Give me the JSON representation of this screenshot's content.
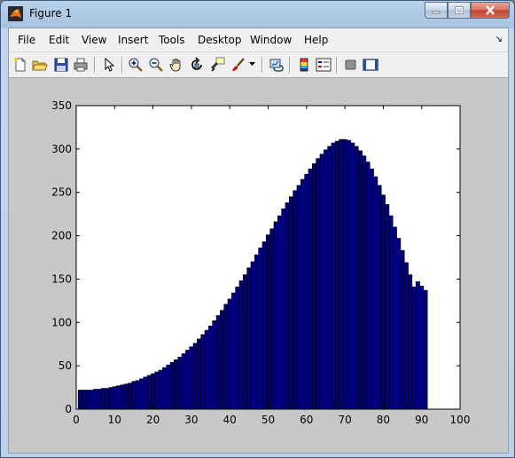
{
  "window": {
    "title": "Figure 1"
  },
  "menu": {
    "items": [
      "File",
      "Edit",
      "View",
      "Insert",
      "Tools",
      "Desktop",
      "Window",
      "Help"
    ],
    "dock_symbol": "↘"
  },
  "toolbar": {
    "buttons": [
      "new-file-icon",
      "open-folder-icon",
      "save-icon",
      "print-icon",
      "pointer-icon",
      "zoom-in-icon",
      "zoom-out-icon",
      "pan-hand-icon",
      "rotate-3d-icon",
      "data-cursor-icon",
      "brush-icon",
      "link-icon",
      "colorbar-icon",
      "legend-icon",
      "hide-plot-tools-icon",
      "show-plot-tools-icon"
    ]
  },
  "colors": {
    "bar_fill": "#00007f",
    "bar_edge": "#000000",
    "figure_bg": "#c8c8c8"
  },
  "chart_data": {
    "type": "bar",
    "xlim": [
      0,
      100
    ],
    "ylim": [
      0,
      350
    ],
    "xticks": [
      0,
      10,
      20,
      30,
      40,
      50,
      60,
      70,
      80,
      90,
      100
    ],
    "yticks": [
      0,
      50,
      100,
      150,
      200,
      250,
      300,
      350
    ],
    "x": [
      1,
      2,
      3,
      4,
      5,
      6,
      7,
      8,
      9,
      10,
      11,
      12,
      13,
      14,
      15,
      16,
      17,
      18,
      19,
      20,
      21,
      22,
      23,
      24,
      25,
      26,
      27,
      28,
      29,
      30,
      31,
      32,
      33,
      34,
      35,
      36,
      37,
      38,
      39,
      40,
      41,
      42,
      43,
      44,
      45,
      46,
      47,
      48,
      49,
      50,
      51,
      52,
      53,
      54,
      55,
      56,
      57,
      58,
      59,
      60,
      61,
      62,
      63,
      64,
      65,
      66,
      67,
      68,
      69,
      70,
      71,
      72,
      73,
      74,
      75,
      76,
      77,
      78,
      79,
      80,
      81,
      82,
      83,
      84,
      85,
      86,
      87,
      88,
      89,
      90,
      91
    ],
    "values": [
      22,
      22,
      22,
      22,
      23,
      23,
      24,
      24,
      25,
      26,
      27,
      28,
      29,
      30,
      32,
      33,
      35,
      37,
      39,
      41,
      43,
      45,
      48,
      51,
      54,
      57,
      60,
      64,
      68,
      72,
      76,
      81,
      86,
      91,
      96,
      102,
      108,
      114,
      121,
      127,
      134,
      141,
      148,
      155,
      163,
      170,
      178,
      186,
      193,
      201,
      208,
      216,
      223,
      231,
      238,
      245,
      252,
      258,
      265,
      271,
      277,
      283,
      289,
      294,
      299,
      303,
      307,
      309,
      311,
      311,
      310,
      307,
      303,
      298,
      292,
      285,
      277,
      268,
      258,
      247,
      236,
      223,
      210,
      197,
      183,
      169,
      155,
      141,
      147,
      142,
      137
    ]
  }
}
